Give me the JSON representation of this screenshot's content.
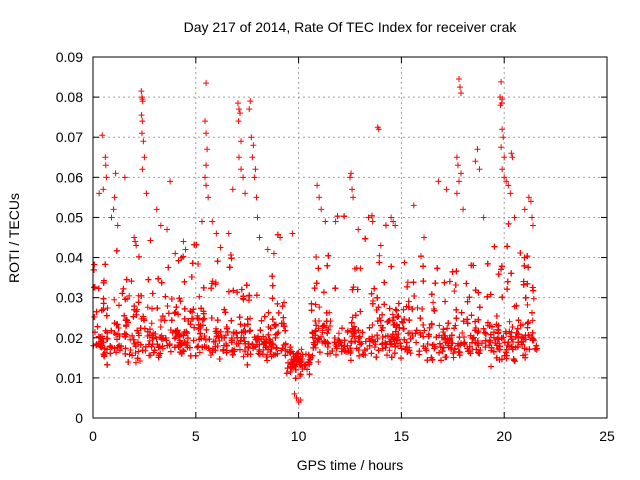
{
  "chart_data": {
    "type": "scatter",
    "title": "Day 217 of 2014, Rate Of TEC Index for receiver crak",
    "xlabel": "GPS time / hours",
    "ylabel": "ROTI / TECUs",
    "xlim": [
      0,
      25
    ],
    "ylim": [
      0,
      0.09
    ],
    "xticks": [
      "0",
      "5",
      "10",
      "15",
      "20",
      "25"
    ],
    "yticks": [
      "0",
      "0.01",
      "0.02",
      "0.03",
      "0.04",
      "0.05",
      "0.06",
      "0.07",
      "0.08",
      "0.09"
    ],
    "grid": true,
    "marker": "+",
    "color": "#ff0000",
    "data_time_range_hours": [
      0,
      21.6
    ],
    "series": [
      {
        "points": [
          [
            0.45,
            0.0705
          ],
          [
            0.6,
            0.065
          ],
          [
            0.62,
            0.063
          ],
          [
            0.65,
            0.06
          ],
          [
            0.5,
            0.057
          ],
          [
            0.3,
            0.056
          ],
          [
            0.9,
            0.05
          ],
          [
            1.0,
            0.052
          ],
          [
            1.1,
            0.061
          ],
          [
            1.05,
            0.055
          ],
          [
            1.2,
            0.048
          ],
          [
            1.55,
            0.06
          ],
          [
            2.0,
            0.045
          ],
          [
            2.05,
            0.044
          ],
          [
            2.1,
            0.043
          ],
          [
            2.35,
            0.0815
          ],
          [
            2.38,
            0.08
          ],
          [
            2.4,
            0.0795
          ],
          [
            2.42,
            0.079
          ],
          [
            2.36,
            0.0755
          ],
          [
            2.4,
            0.074
          ],
          [
            2.38,
            0.071
          ],
          [
            2.45,
            0.069
          ],
          [
            2.5,
            0.065
          ],
          [
            2.4,
            0.062
          ],
          [
            2.6,
            0.056
          ],
          [
            3.1,
            0.052
          ],
          [
            3.3,
            0.048
          ],
          [
            3.6,
            0.047
          ],
          [
            3.75,
            0.059
          ],
          [
            4.0,
            0.041
          ],
          [
            4.4,
            0.044
          ],
          [
            4.5,
            0.042
          ],
          [
            5.3,
            0.049
          ],
          [
            5.5,
            0.0835
          ],
          [
            5.45,
            0.074
          ],
          [
            5.5,
            0.071
          ],
          [
            5.55,
            0.067
          ],
          [
            5.5,
            0.063
          ],
          [
            5.45,
            0.06
          ],
          [
            5.5,
            0.058
          ],
          [
            5.6,
            0.055
          ],
          [
            5.8,
            0.049
          ],
          [
            6.0,
            0.046
          ],
          [
            6.6,
            0.046
          ],
          [
            6.8,
            0.057
          ],
          [
            7.05,
            0.0785
          ],
          [
            7.1,
            0.077
          ],
          [
            7.15,
            0.076
          ],
          [
            7.08,
            0.074
          ],
          [
            7.2,
            0.069
          ],
          [
            7.1,
            0.065
          ],
          [
            7.2,
            0.062
          ],
          [
            7.3,
            0.06
          ],
          [
            7.4,
            0.056
          ],
          [
            7.65,
            0.079
          ],
          [
            7.6,
            0.077
          ],
          [
            7.7,
            0.07
          ],
          [
            7.8,
            0.068
          ],
          [
            7.75,
            0.065
          ],
          [
            7.9,
            0.062
          ],
          [
            7.85,
            0.06
          ],
          [
            7.95,
            0.055
          ],
          [
            8.0,
            0.05
          ],
          [
            8.1,
            0.045
          ],
          [
            8.5,
            0.042
          ],
          [
            8.8,
            0.041
          ],
          [
            9.1,
            0.045
          ],
          [
            9.7,
            0.046
          ],
          [
            9.9,
            0.005
          ],
          [
            10.0,
            0.004
          ],
          [
            10.1,
            0.0045
          ],
          [
            9.8,
            0.006
          ],
          [
            10.9,
            0.058
          ],
          [
            11.0,
            0.055
          ],
          [
            11.1,
            0.052
          ],
          [
            11.3,
            0.049
          ],
          [
            11.8,
            0.049
          ],
          [
            12.5,
            0.06
          ],
          [
            12.55,
            0.061
          ],
          [
            12.6,
            0.057
          ],
          [
            12.65,
            0.055
          ],
          [
            12.9,
            0.047
          ],
          [
            13.4,
            0.05
          ],
          [
            13.6,
            0.049
          ],
          [
            13.85,
            0.0725
          ],
          [
            13.9,
            0.072
          ],
          [
            14.0,
            0.043
          ],
          [
            14.5,
            0.05
          ],
          [
            14.6,
            0.049
          ],
          [
            14.7,
            0.048
          ],
          [
            15.6,
            0.053
          ],
          [
            16.1,
            0.045
          ],
          [
            16.8,
            0.059
          ],
          [
            17.2,
            0.057
          ],
          [
            17.8,
            0.0845
          ],
          [
            17.85,
            0.0825
          ],
          [
            17.9,
            0.081
          ],
          [
            17.7,
            0.065
          ],
          [
            17.75,
            0.063
          ],
          [
            17.9,
            0.061
          ],
          [
            17.8,
            0.059
          ],
          [
            17.7,
            0.056
          ],
          [
            18.0,
            0.052
          ],
          [
            18.7,
            0.067
          ],
          [
            18.6,
            0.064
          ],
          [
            18.8,
            0.062
          ],
          [
            19.0,
            0.05
          ],
          [
            19.85,
            0.0838
          ],
          [
            19.8,
            0.08
          ],
          [
            19.9,
            0.0795
          ],
          [
            19.88,
            0.0785
          ],
          [
            19.82,
            0.078
          ],
          [
            19.9,
            0.072
          ],
          [
            19.95,
            0.07
          ],
          [
            19.85,
            0.0675
          ],
          [
            20.0,
            0.065
          ],
          [
            19.9,
            0.062
          ],
          [
            20.0,
            0.06
          ],
          [
            20.1,
            0.059
          ],
          [
            20.2,
            0.058
          ],
          [
            20.35,
            0.066
          ],
          [
            20.4,
            0.065
          ],
          [
            20.3,
            0.056
          ],
          [
            20.5,
            0.05
          ],
          [
            21.0,
            0.052
          ],
          [
            21.2,
            0.055
          ],
          [
            21.3,
            0.054
          ],
          [
            21.35,
            0.05
          ],
          [
            21.4,
            0.048
          ]
        ]
      }
    ]
  }
}
